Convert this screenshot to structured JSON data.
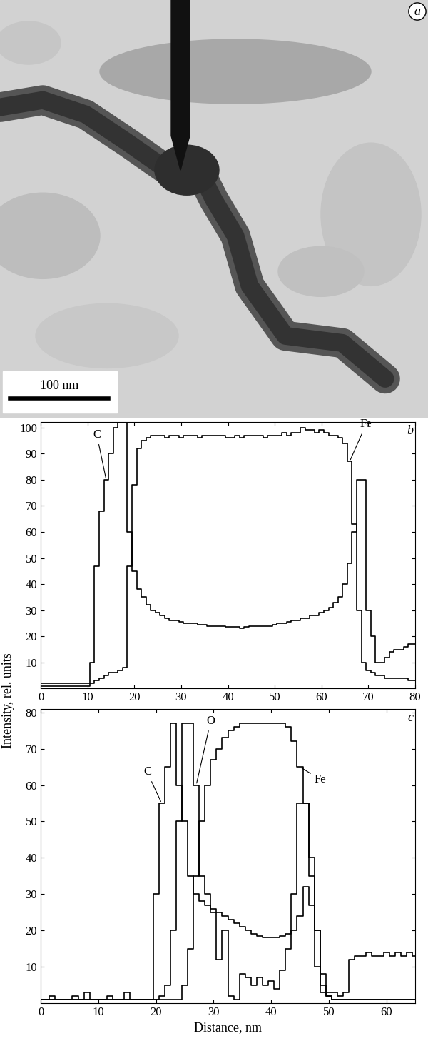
{
  "image": {
    "label": "a",
    "scale_bar": "100 nm"
  },
  "shared_y_label": "Intensity, rel. units",
  "chart_data": [
    {
      "type": "line",
      "label": "b",
      "line_style": "steps",
      "x": [
        0,
        1,
        2,
        3,
        4,
        5,
        6,
        7,
        8,
        9,
        10,
        11,
        12,
        13,
        14,
        15,
        16,
        17,
        18,
        19,
        20,
        21,
        22,
        23,
        24,
        25,
        26,
        27,
        28,
        29,
        30,
        31,
        32,
        33,
        34,
        35,
        36,
        37,
        38,
        39,
        40,
        41,
        42,
        43,
        44,
        45,
        46,
        47,
        48,
        49,
        50,
        51,
        52,
        53,
        54,
        55,
        56,
        57,
        58,
        59,
        60,
        61,
        62,
        63,
        64,
        65,
        66,
        67,
        68,
        69,
        70,
        71,
        72,
        73,
        74,
        75,
        76,
        77,
        78,
        79,
        80
      ],
      "series": [
        {
          "name": "C",
          "color": "#000000",
          "values": [
            2,
            2,
            2,
            2,
            2,
            2,
            2,
            2,
            2,
            2,
            2,
            10,
            47,
            68,
            80,
            90,
            100,
            102,
            102,
            60,
            45,
            38,
            35,
            32,
            30,
            29,
            28,
            27,
            26,
            26,
            25.5,
            25,
            25,
            25,
            24.5,
            24.5,
            24,
            24,
            24,
            24,
            23.5,
            23.5,
            23.5,
            23,
            23.5,
            24,
            24,
            24,
            24,
            24,
            24.5,
            25,
            25,
            25.5,
            26,
            26,
            27,
            27,
            28,
            28,
            29,
            30,
            31,
            33,
            35,
            40,
            48,
            60,
            80,
            80,
            30,
            20,
            10,
            10,
            12,
            14,
            15,
            15,
            16,
            17,
            17
          ]
        },
        {
          "name": "Fe",
          "color": "#000000",
          "values": [
            1,
            1,
            1,
            1,
            1,
            1,
            1,
            1,
            1,
            1,
            1,
            2,
            3,
            4,
            5,
            6,
            6,
            7,
            8,
            47,
            78,
            92,
            95,
            96,
            97,
            97,
            97,
            96,
            97,
            97,
            96,
            97,
            97,
            97,
            96,
            97,
            97,
            97,
            97,
            97,
            96,
            96,
            97,
            96,
            97,
            97,
            97,
            97,
            96,
            97,
            97,
            97,
            98,
            97,
            98,
            98,
            100,
            99,
            99,
            98,
            99,
            98,
            97,
            97,
            96,
            94,
            87,
            63,
            30,
            10,
            7,
            6,
            5,
            5,
            4,
            4,
            4,
            4,
            4,
            3,
            3
          ]
        }
      ],
      "xlim": [
        0,
        80
      ],
      "ylim": [
        0,
        102
      ],
      "xticks": [
        0,
        10,
        20,
        30,
        40,
        50,
        60,
        70,
        80
      ],
      "yticks": [
        10,
        20,
        30,
        40,
        50,
        60,
        70,
        80,
        90,
        100
      ]
    },
    {
      "type": "line",
      "label": "c",
      "line_style": "steps",
      "x_label": "Distance, nm",
      "x": [
        0,
        1,
        2,
        3,
        4,
        5,
        6,
        7,
        8,
        9,
        10,
        11,
        12,
        13,
        14,
        15,
        16,
        17,
        18,
        19,
        20,
        21,
        22,
        23,
        24,
        25,
        26,
        27,
        28,
        29,
        30,
        31,
        32,
        33,
        34,
        35,
        36,
        37,
        38,
        39,
        40,
        41,
        42,
        43,
        44,
        45,
        46,
        47,
        48,
        49,
        50,
        51,
        52,
        53,
        54,
        55,
        56,
        57,
        58,
        59,
        60,
        61,
        62,
        63,
        64,
        65
      ],
      "series": [
        {
          "name": "C",
          "color": "#000000",
          "values": [
            1,
            1,
            2,
            1,
            1,
            1,
            2,
            1,
            3,
            1,
            1,
            1,
            2,
            1,
            1,
            3,
            1,
            1,
            1,
            1,
            30,
            55,
            65,
            77,
            60,
            50,
            35,
            30,
            28,
            27,
            26,
            25,
            24,
            23,
            22,
            21,
            20,
            19,
            18.5,
            18,
            18,
            18,
            18.5,
            19,
            20,
            24,
            32,
            27,
            20,
            8,
            3,
            3,
            2,
            3,
            12,
            13,
            13,
            14,
            13,
            13,
            14,
            13,
            14,
            13,
            14,
            13
          ]
        },
        {
          "name": "O",
          "color": "#000000",
          "values": [
            1,
            1,
            1,
            1,
            1,
            1,
            1,
            1,
            1,
            1,
            1,
            1,
            1,
            1,
            1,
            1,
            1,
            1,
            1,
            1,
            1,
            2,
            5,
            20,
            50,
            77,
            77,
            60,
            35,
            30,
            25,
            12,
            20,
            2,
            1,
            8,
            7,
            5,
            7,
            5,
            6,
            4,
            9,
            15,
            30,
            55,
            55,
            40,
            20,
            5,
            2,
            1,
            1,
            1,
            1,
            1,
            1,
            1,
            1,
            1,
            1,
            1,
            1,
            1,
            1,
            1
          ]
        },
        {
          "name": "Fe",
          "color": "#000000",
          "values": [
            1,
            1,
            1,
            1,
            1,
            1,
            1,
            1,
            1,
            1,
            1,
            1,
            1,
            1,
            1,
            1,
            1,
            1,
            1,
            1,
            1,
            1,
            1,
            1,
            1,
            5,
            15,
            35,
            50,
            60,
            67,
            70,
            73,
            75,
            76,
            77,
            77,
            77,
            77,
            77,
            77,
            77,
            77,
            76,
            72,
            65,
            55,
            35,
            10,
            3,
            2,
            1,
            1,
            1,
            1,
            1,
            1,
            1,
            1,
            1,
            1,
            1,
            1,
            1,
            1,
            1
          ]
        }
      ],
      "xlim": [
        0,
        65
      ],
      "ylim": [
        0,
        81
      ],
      "xticks": [
        0,
        10,
        20,
        30,
        40,
        50,
        60
      ],
      "yticks": [
        10,
        20,
        30,
        40,
        50,
        60,
        70,
        80
      ]
    }
  ]
}
